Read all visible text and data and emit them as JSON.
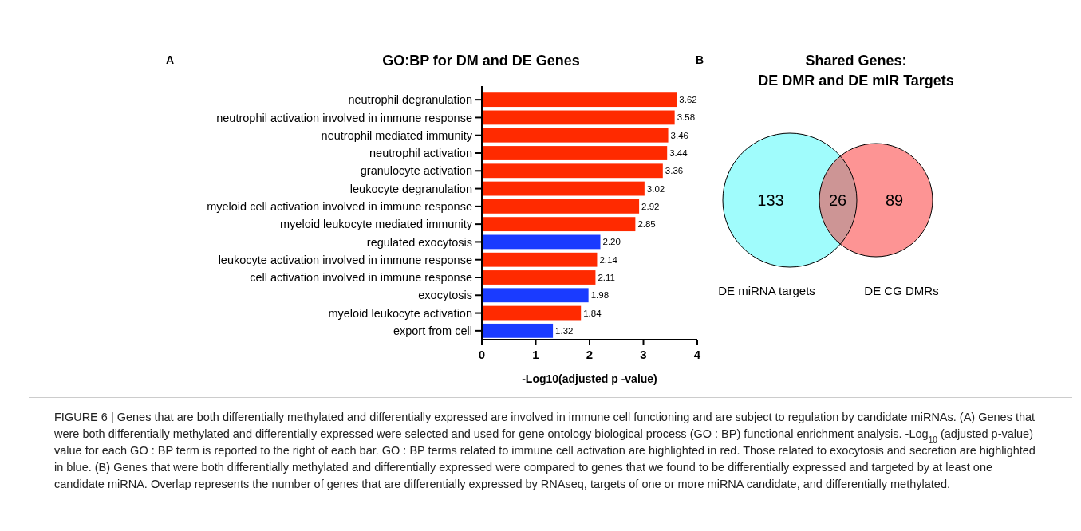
{
  "chart_data": [
    {
      "type": "bar",
      "orientation": "horizontal",
      "title": "GO:BP for DM and DE Genes",
      "xlabel": "-Log10(adjusted p -value)",
      "categories": [
        "neutrophil degranulation",
        "neutrophil activation involved in immune response",
        "neutrophil mediated immunity",
        "neutrophil activation",
        "granulocyte activation",
        "leukocyte degranulation",
        "myeloid cell activation involved in immune response",
        "myeloid leukocyte mediated immunity",
        "regulated exocytosis",
        "leukocyte activation involved in immune response",
        "cell activation involved in immune response",
        "exocytosis",
        "myeloid leukocyte activation",
        "export from cell"
      ],
      "values": [
        3.62,
        3.58,
        3.46,
        3.44,
        3.36,
        3.02,
        2.92,
        2.85,
        2.2,
        2.14,
        2.11,
        1.98,
        1.84,
        1.32
      ],
      "value_labels": [
        "3.62",
        "3.58",
        "3.46",
        "3.44",
        "3.36",
        "3.02",
        "2.92",
        "2.85",
        "2.20",
        "2.14",
        "2.11",
        "1.98",
        "1.84",
        "1.32"
      ],
      "colors": [
        "#ff2a00",
        "#ff2a00",
        "#ff2a00",
        "#ff2a00",
        "#ff2a00",
        "#ff2a00",
        "#ff2a00",
        "#ff2a00",
        "#1a3bff",
        "#ff2a00",
        "#ff2a00",
        "#1a3bff",
        "#ff2a00",
        "#1a3bff"
      ],
      "xlim": [
        0,
        4
      ],
      "xticks": [
        0,
        1,
        2,
        3,
        4
      ],
      "annotations": [
        "A",
        "FIGURE 6 | Genes that are both differentially methylated and differentially expressed are involved in immune cell functioning and are subject to regulation by candidate miRNAs. (A) Genes that were both differentially methylated and differentially expressed were selected and used for gene ontology biological process (GO : BP) functional enrichment analysis. -Log$_{10}$ (adjusted p-value) value for each GO : BP term is reported to the right of each bar. GO : BP terms related to immune cell activation are highlighted in red. Those related to exocytosis and secretion are highlighted in blue. (B) Genes that were both differentially methylated and differentially expressed were compared to genes that we found to be differentially expressed and targeted by at least one candidate miRNA. Overlap represents the number of genes that are differentially expressed by RNAseq, targets of one or more miRNA candidate, and differentially methylated."
      ]
    },
    {
      "type": "other",
      "title": "Shared Genes:\nDE DMR and DE miR Targets",
      "categories": [
        "DE miRNA targets",
        null,
        "DE CG DMRs"
      ],
      "values": [
        133,
        26,
        89
      ],
      "colors": [
        "#a0fcfc",
        "#cd9595",
        "#fd9494"
      ],
      "data_labels": true,
      "annotations": [
        "B"
      ]
    }
  ]
}
